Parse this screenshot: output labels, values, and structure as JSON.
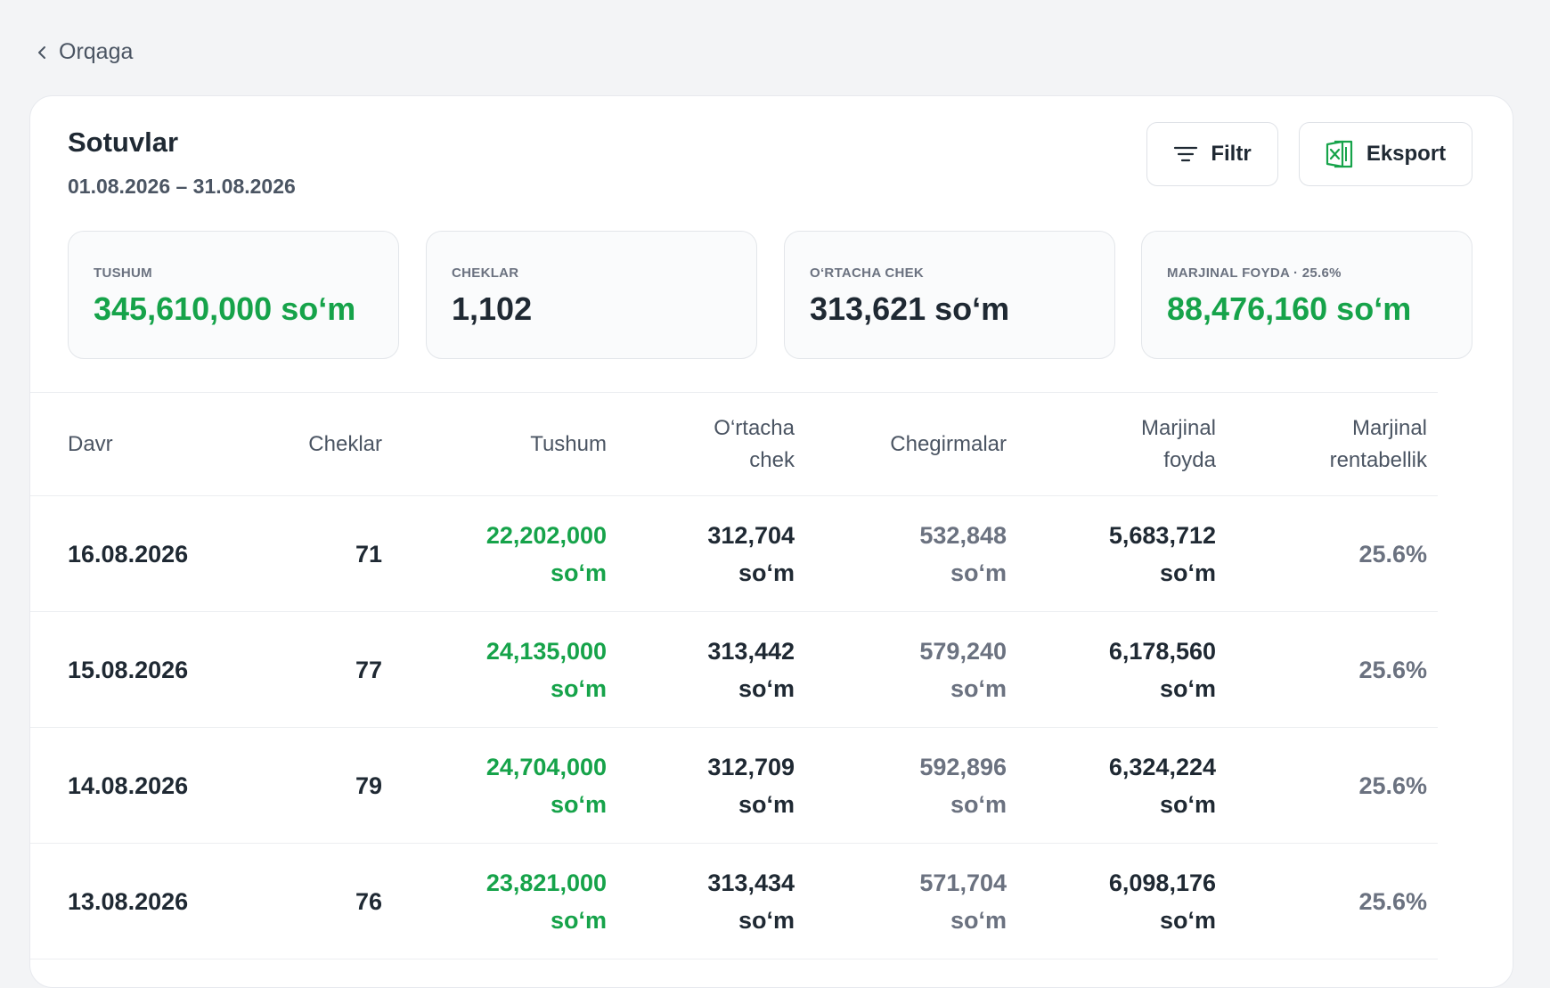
{
  "nav": {
    "back_label": "Orqaga"
  },
  "header": {
    "title": "Sotuvlar",
    "period": "01.08.2026 – 31.08.2026",
    "filter_label": "Filtr",
    "export_label": "Eksport"
  },
  "stats": [
    {
      "label": "TUSHUM",
      "value": "345,610,000 soʻm"
    },
    {
      "label": "CHEKLAR",
      "value": "1,102"
    },
    {
      "label": "O‘RTACHA CHEK",
      "value": "313,621 soʻm"
    },
    {
      "label": "MARJINAL FOYDA · 25.6%",
      "value": "88,476,160 soʻm"
    }
  ],
  "table": {
    "columns": [
      {
        "line1": "Davr",
        "line2": ""
      },
      {
        "line1": "Cheklar",
        "line2": ""
      },
      {
        "line1": "Tushum",
        "line2": ""
      },
      {
        "line1": "O‘rtacha",
        "line2": "chek"
      },
      {
        "line1": "Chegirmalar",
        "line2": ""
      },
      {
        "line1": "Marjinal",
        "line2": "foyda"
      },
      {
        "line1": "Marjinal",
        "line2": "rentabellik"
      }
    ],
    "currency": "soʻm",
    "rows": [
      {
        "date": "16.08.2026",
        "checks": "71",
        "revenue": "22,202,000",
        "avg": "312,704",
        "discounts": "532,848",
        "margin": "5,683,712",
        "pct": "25.6%"
      },
      {
        "date": "15.08.2026",
        "checks": "77",
        "revenue": "24,135,000",
        "avg": "313,442",
        "discounts": "579,240",
        "margin": "6,178,560",
        "pct": "25.6%"
      },
      {
        "date": "14.08.2026",
        "checks": "79",
        "revenue": "24,704,000",
        "avg": "312,709",
        "discounts": "592,896",
        "margin": "6,324,224",
        "pct": "25.6%"
      },
      {
        "date": "13.08.2026",
        "checks": "76",
        "revenue": "23,821,000",
        "avg": "313,434",
        "discounts": "571,704",
        "margin": "6,098,176",
        "pct": "25.6%"
      }
    ]
  },
  "colors": {
    "accent_green": "#16a34a",
    "export_icon_green": "#16a34a"
  },
  "icons": {
    "back": "chevron-left-icon",
    "filter": "filter-lines-icon",
    "export": "excel-icon"
  }
}
